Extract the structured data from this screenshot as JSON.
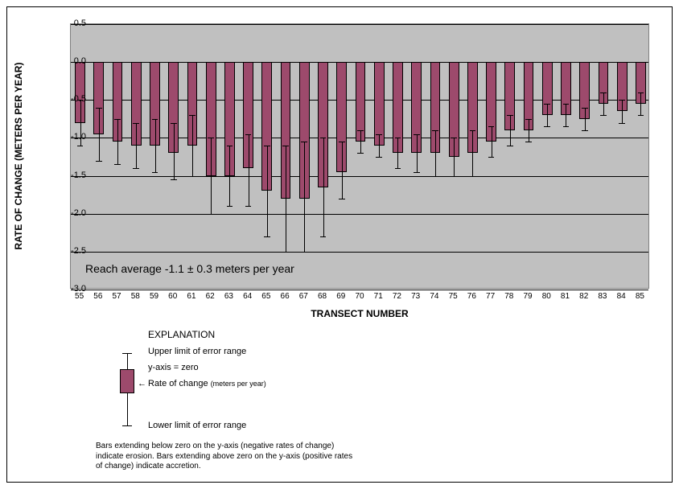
{
  "chart": {
    "type": "bar-with-error",
    "background_color": "#c0c0c0",
    "grid_color": "#000000",
    "bar_color": "#9d4a6c",
    "bar_border_color": "#000000",
    "error_color": "#000000",
    "bar_width_ratio": 0.55,
    "y_axis": {
      "title": "RATE OF CHANGE (METERS PER YEAR)",
      "min": -3.0,
      "max": 0.5,
      "ticks": [
        0.5,
        0.0,
        -0.5,
        -1.0,
        -1.5,
        -2.0,
        -2.5,
        -3.0
      ],
      "tick_fontsize": 11,
      "title_fontsize": 12
    },
    "x_axis": {
      "title": "TRANSECT NUMBER",
      "tick_fontsize": 10,
      "title_fontsize": 12
    },
    "categories": [
      55,
      56,
      57,
      58,
      59,
      60,
      61,
      62,
      63,
      64,
      65,
      66,
      67,
      68,
      69,
      70,
      71,
      72,
      73,
      74,
      75,
      76,
      77,
      78,
      79,
      80,
      81,
      82,
      83,
      84,
      85
    ],
    "values": [
      -0.8,
      -0.95,
      -1.05,
      -1.1,
      -1.1,
      -1.2,
      -1.1,
      -1.5,
      -1.5,
      -1.4,
      -1.7,
      -1.8,
      -1.8,
      -1.65,
      -1.45,
      -1.05,
      -1.1,
      -1.2,
      -1.2,
      -1.2,
      -1.25,
      -1.2,
      -1.05,
      -0.9,
      -0.9,
      -0.7,
      -0.7,
      -0.75,
      -0.55,
      -0.65,
      -0.55
    ],
    "err_upper": [
      -0.5,
      -0.6,
      -0.75,
      -0.8,
      -0.75,
      -0.8,
      -0.7,
      -1.0,
      -1.1,
      -0.95,
      -1.1,
      -1.1,
      -1.05,
      -1.0,
      -1.05,
      -0.9,
      -0.95,
      -1.0,
      -0.95,
      -0.9,
      -1.0,
      -0.9,
      -0.85,
      -0.7,
      -0.75,
      -0.55,
      -0.55,
      -0.6,
      -0.4,
      -0.5,
      -0.4
    ],
    "err_lower": [
      -1.1,
      -1.3,
      -1.35,
      -1.4,
      -1.45,
      -1.55,
      -1.5,
      -2.0,
      -1.9,
      -1.9,
      -2.3,
      -2.5,
      -2.5,
      -2.3,
      -1.8,
      -1.2,
      -1.25,
      -1.4,
      -1.45,
      -1.5,
      -1.5,
      -1.5,
      -1.25,
      -1.1,
      -1.05,
      -0.85,
      -0.85,
      -0.9,
      -0.7,
      -0.8,
      -0.7
    ],
    "annotation": "Reach average -1.1 ± 0.3 meters per year",
    "annotation_fontsize": 14
  },
  "explanation": {
    "header": "EXPLANATION",
    "upper_label": "Upper limit of error range",
    "yaxis_zero_label": "y-axis = zero",
    "rate_label": "Rate of change",
    "rate_unit": "(meters per year)",
    "lower_label": "Lower limit of error range",
    "note": "Bars extending below zero on the y-axis  (negative rates of change) indicate erosion.  Bars extending above zero on the y-axis (positive rates of change) indicate accretion."
  }
}
